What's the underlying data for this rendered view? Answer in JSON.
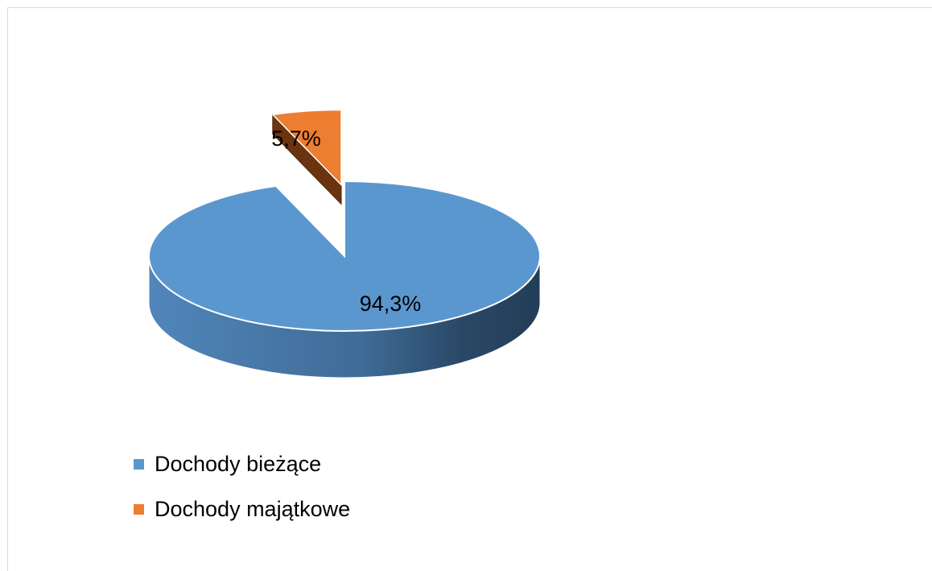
{
  "chart_data": {
    "type": "pie",
    "title": "",
    "slices": [
      {
        "label": "Dochody bieżące",
        "value": 94.3,
        "value_label": "94,3%",
        "color": "#5B97CF"
      },
      {
        "label": "Dochody majątkowe",
        "value": 5.7,
        "value_label": "5,7%",
        "color": "#ED7D31"
      }
    ],
    "legend": "bottom-left",
    "style": "3d-exploded"
  }
}
